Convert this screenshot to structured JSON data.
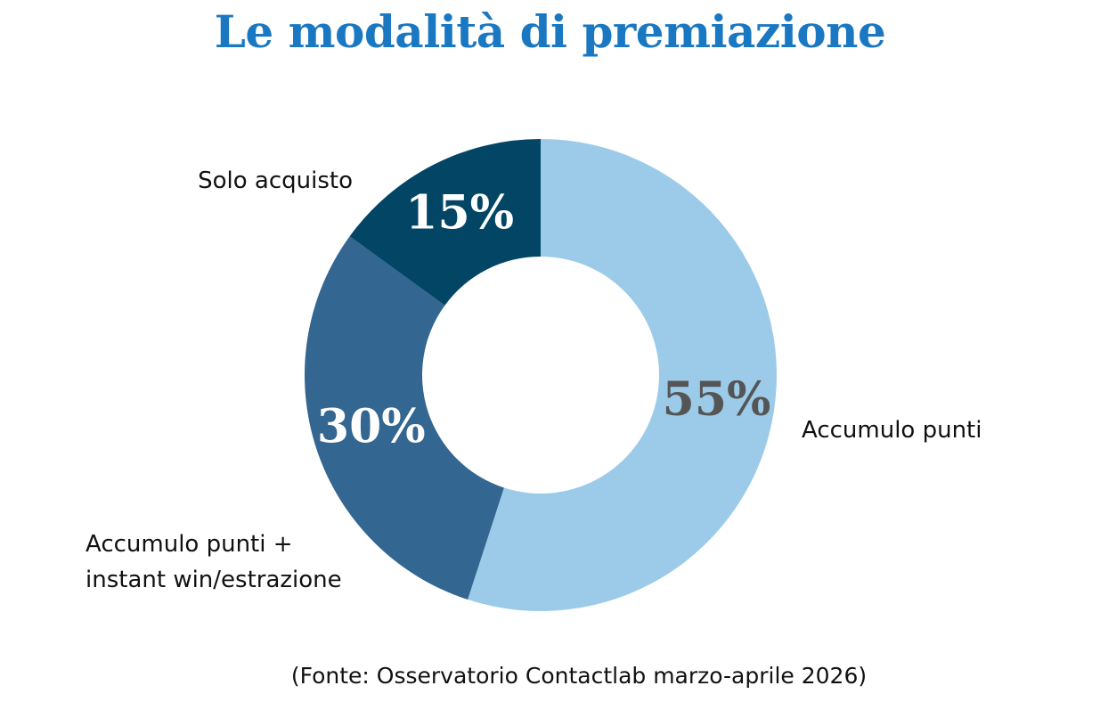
{
  "chart_data": {
    "type": "pie",
    "title": "Le modalità di premiazione",
    "categories": [
      "Accumulo punti",
      "Accumulo punti + instant win/estrazione",
      "Solo acquisto"
    ],
    "values": [
      55,
      30,
      15
    ],
    "value_labels": [
      "55%",
      "30%",
      "15%"
    ],
    "colors": [
      "#9ccbea",
      "#336691",
      "#034565"
    ],
    "value_label_colors": [
      "#555555",
      "#ffffff",
      "#ffffff"
    ],
    "donut": true,
    "source": "(Fonte: Osservatorio Contactlab marzo-aprile 2026)"
  }
}
